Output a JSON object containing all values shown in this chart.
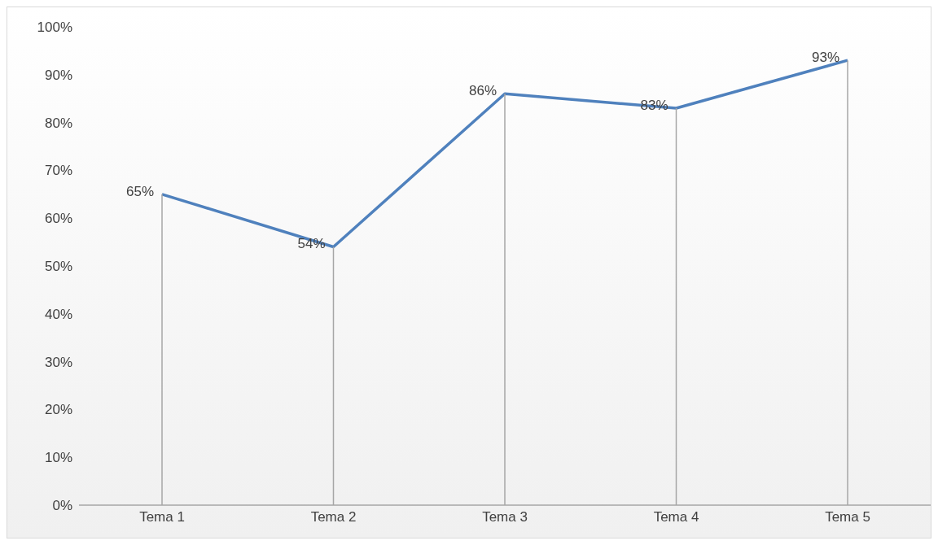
{
  "chart_data": {
    "type": "line",
    "categories": [
      "Tema 1",
      "Tema 2",
      "Tema 3",
      "Tema 4",
      "Tema 5"
    ],
    "series": [
      {
        "color": "#4f81bd",
        "values": [
          65,
          54,
          86,
          83,
          93
        ]
      }
    ],
    "ylim": [
      0,
      100
    ],
    "yticks": [
      {
        "value": 0,
        "label": "0%"
      },
      {
        "value": 10,
        "label": "10%"
      },
      {
        "value": 20,
        "label": "20%"
      },
      {
        "value": 30,
        "label": "30%"
      },
      {
        "value": 40,
        "label": "40%"
      },
      {
        "value": 50,
        "label": "50%"
      },
      {
        "value": 60,
        "label": "60%"
      },
      {
        "value": 70,
        "label": "70%"
      },
      {
        "value": 80,
        "label": "80%"
      },
      {
        "value": 90,
        "label": "90%"
      },
      {
        "value": 100,
        "label": "100%"
      }
    ],
    "value_labels": [
      "65%",
      "54%",
      "86%",
      "83%",
      "93%"
    ],
    "grid": "x",
    "legend": false,
    "marker": "none",
    "line_style": "solid"
  }
}
